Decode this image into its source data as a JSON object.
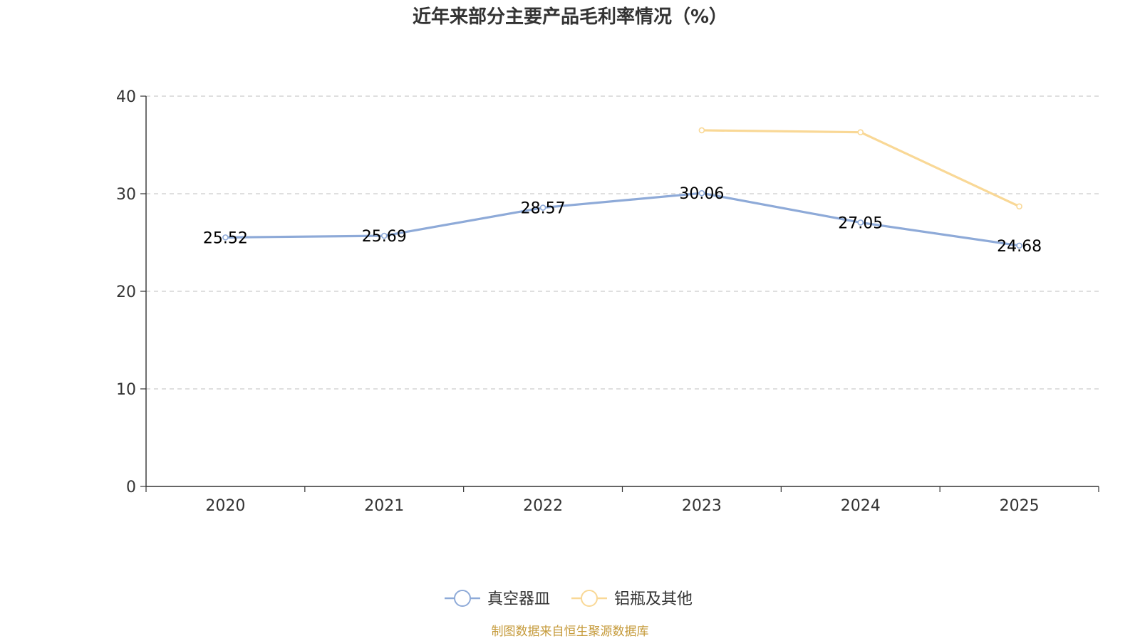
{
  "chart_data": {
    "type": "line",
    "title": "近年来部分主要产品毛利率情况（%）",
    "categories": [
      "2020",
      "2021",
      "2022",
      "2023",
      "2024",
      "2025"
    ],
    "ylim": [
      0,
      40
    ],
    "yticks": [
      0,
      10,
      20,
      30,
      40
    ],
    "grid": true,
    "legend_position": "bottom",
    "series": [
      {
        "name": "真空器皿",
        "color": "#8eaad8",
        "values": [
          25.52,
          25.69,
          28.57,
          30.06,
          27.05,
          24.68
        ],
        "labels": [
          "25.52",
          "25.69",
          "28.57",
          "30.06",
          "27.05",
          "24.68"
        ]
      },
      {
        "name": "铝瓶及其他",
        "color": "#f9d896",
        "values": [
          null,
          null,
          null,
          36.5,
          36.3,
          28.7
        ],
        "labels": []
      }
    ]
  },
  "source": {
    "text": "制图数据来自恒生聚源数据库",
    "color": "#c59a3a"
  }
}
